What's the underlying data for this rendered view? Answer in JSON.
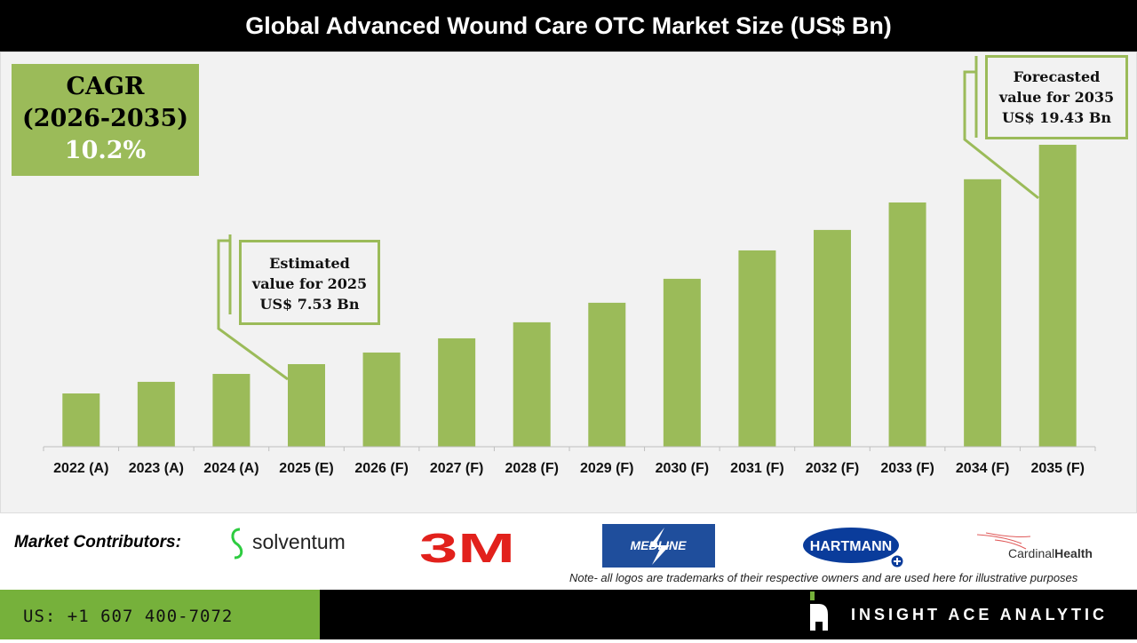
{
  "title": "Global Advanced Wound Care OTC Market Size (US$ Bn)",
  "cagr": {
    "label": "CAGR",
    "period": "(2026-2035)",
    "value": "10.2%"
  },
  "callouts": {
    "estimated": [
      "Estimated",
      "value for 2025",
      "US$ 7.53 Bn"
    ],
    "forecast": [
      "Forecasted",
      "value for 2035",
      "US$ 19.43 Bn"
    ]
  },
  "chart_data": {
    "type": "bar",
    "title": "Global Advanced Wound Care OTC Market Size (US$ Bn)",
    "categories": [
      "2022 (A)",
      "2023 (A)",
      "2024 (A)",
      "2025 (E)",
      "2026 (F)",
      "2027 (F)",
      "2028 (F)",
      "2029 (F)",
      "2030 (F)",
      "2031 (F)",
      "2032 (F)",
      "2033 (F)",
      "2034 (F)",
      "2035 (F)"
    ],
    "values": [
      5.94,
      6.57,
      7.0,
      7.53,
      8.16,
      8.93,
      9.8,
      10.86,
      12.16,
      13.7,
      14.81,
      16.3,
      17.56,
      19.43
    ],
    "ylim": [
      3.05,
      21
    ],
    "xlabel": "",
    "ylabel": "",
    "grid": false,
    "bar_color": "#9bbb59"
  },
  "footer": {
    "contributors_label": "Market Contributors:",
    "logos": [
      "solventum",
      "3M",
      "MEDLINE",
      "HARTMANN",
      "CardinalHealth"
    ],
    "note": "Note- all logos are trademarks of their respective owners and are used here for illustrative purposes",
    "phone": "US: +1 607 400-7072",
    "brand": "INSIGHT ACE ANALYTIC"
  }
}
